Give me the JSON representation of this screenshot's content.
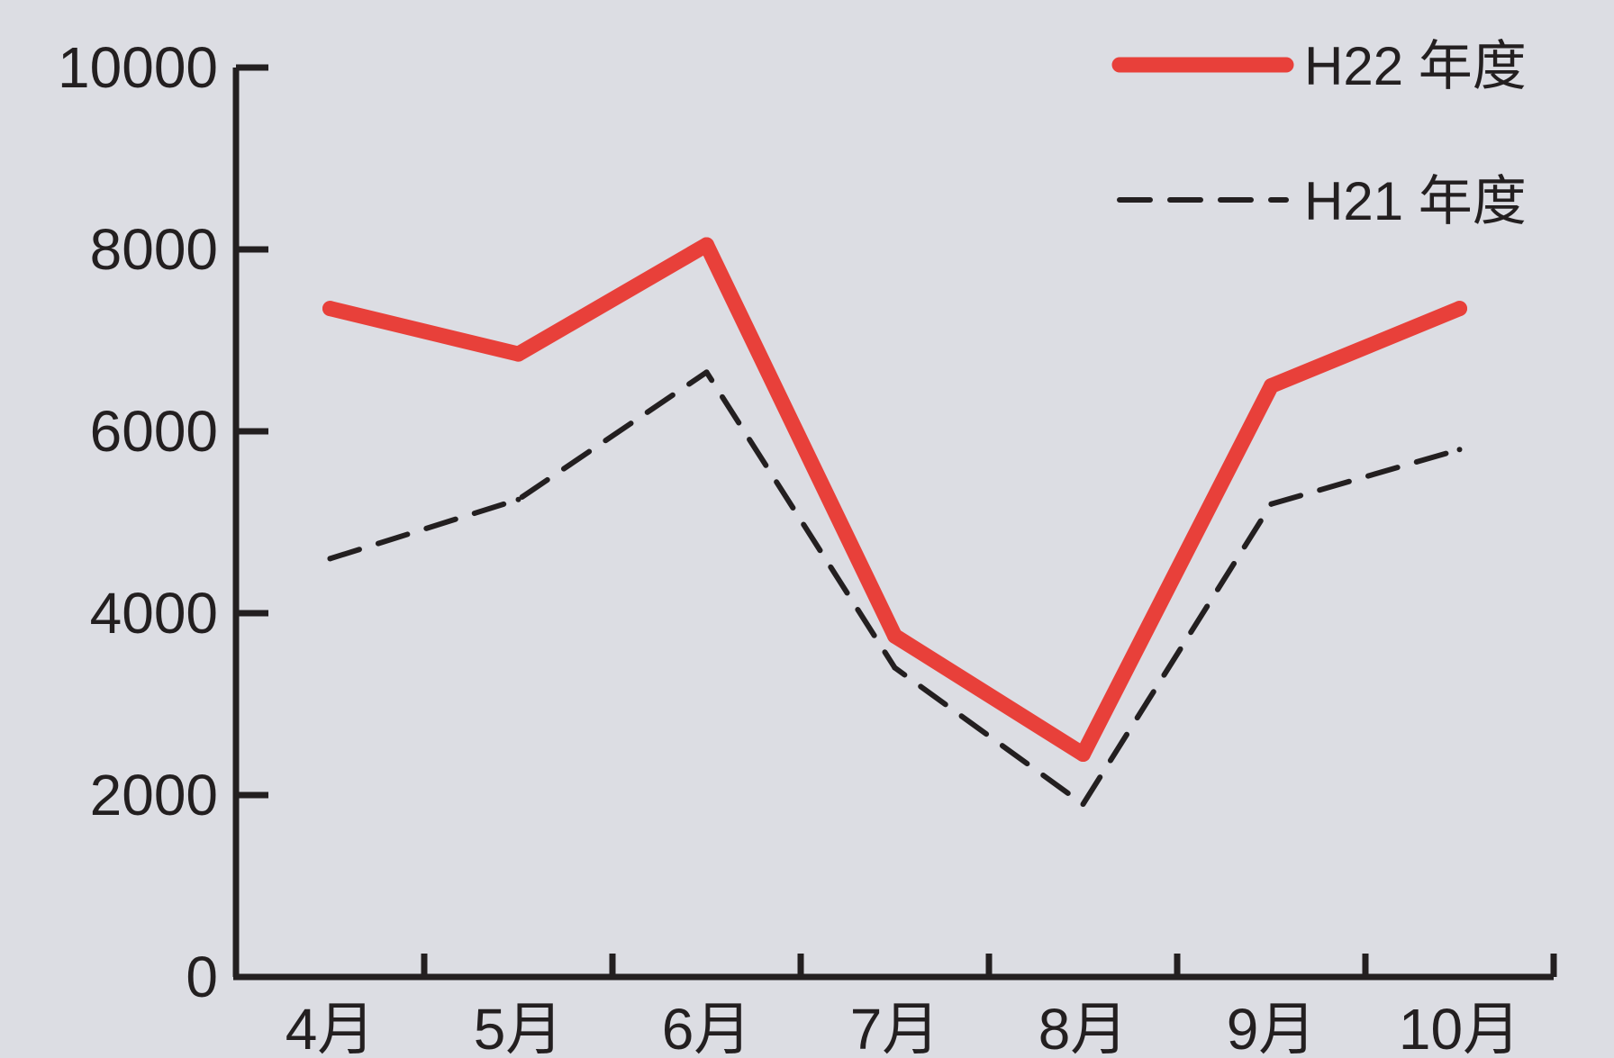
{
  "chart_data": {
    "type": "line",
    "categories": [
      "4月",
      "5月",
      "6月",
      "7月",
      "8月",
      "9月",
      "10月"
    ],
    "series": [
      {
        "name": "H22 年度",
        "values": [
          7350,
          6850,
          8050,
          3750,
          2450,
          6500,
          7350
        ],
        "color": "#e8403a",
        "style": "solid"
      },
      {
        "name": "H21 年度",
        "values": [
          4600,
          5250,
          6650,
          3400,
          1900,
          5200,
          5800
        ],
        "color": "#231f20",
        "style": "dashed"
      }
    ],
    "yticks": [
      "0",
      "2000",
      "4000",
      "6000",
      "8000",
      "10000"
    ],
    "ylim": [
      0,
      10000
    ],
    "title": "",
    "xlabel": "",
    "ylabel": "",
    "grid": false,
    "legend_position": "top-right",
    "background": "#dcdde3",
    "decoration": "snowflake-icon"
  }
}
